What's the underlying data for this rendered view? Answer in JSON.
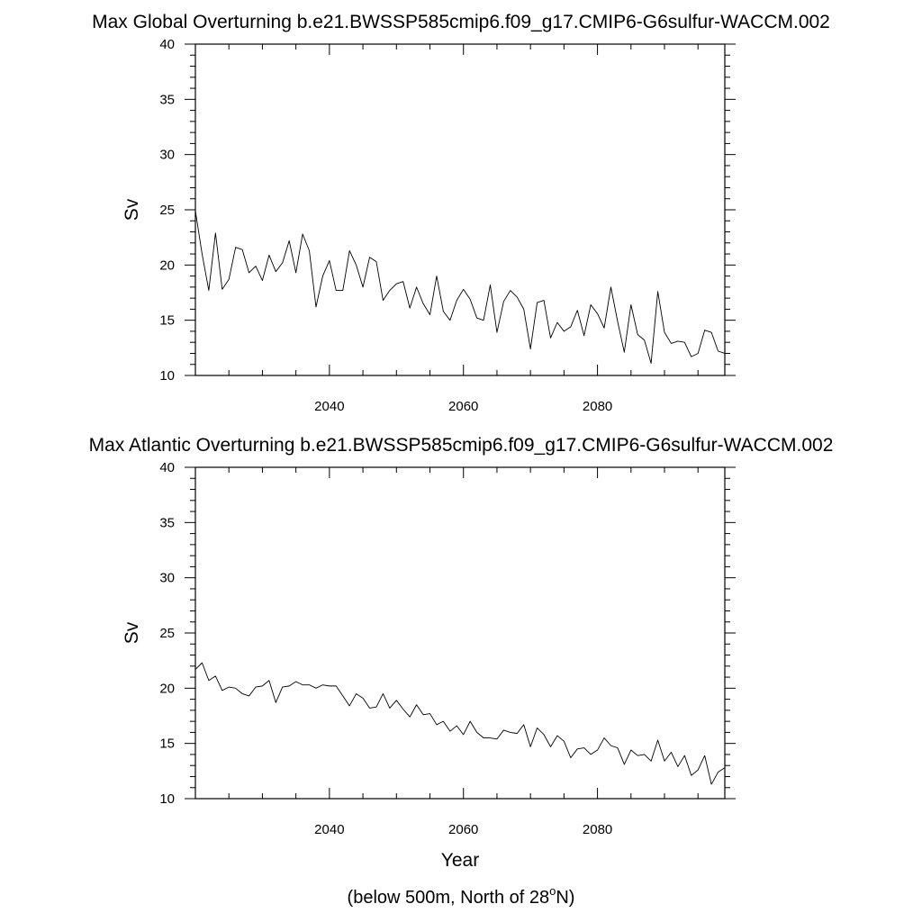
{
  "chart_data": [
    {
      "type": "line",
      "title": "Max Global Overturning b.e21.BWSSP585cmip6.f09_g17.CMIP6-G6sulfur-WACCM.002",
      "xlabel": "",
      "ylabel": "Sv",
      "xlim": [
        2020,
        2099
      ],
      "ylim": [
        10,
        40
      ],
      "x_ticks": [
        "2040",
        "2060",
        "2080"
      ],
      "y_ticks": [
        "10",
        "15",
        "20",
        "25",
        "30",
        "35",
        "40"
      ],
      "grid": false,
      "series": [
        {
          "x": [
            2020,
            2021,
            2022,
            2023,
            2024,
            2025,
            2026,
            2027,
            2028,
            2029,
            2030,
            2031,
            2032,
            2033,
            2034,
            2035,
            2036,
            2037,
            2038,
            2039,
            2040,
            2041,
            2042,
            2043,
            2044,
            2045,
            2046,
            2047,
            2048,
            2049,
            2050,
            2051,
            2052,
            2053,
            2054,
            2055,
            2056,
            2057,
            2058,
            2059,
            2060,
            2061,
            2062,
            2063,
            2064,
            2065,
            2066,
            2067,
            2068,
            2069,
            2070,
            2071,
            2072,
            2073,
            2074,
            2075,
            2076,
            2077,
            2078,
            2079,
            2080,
            2081,
            2082,
            2083,
            2084,
            2085,
            2086,
            2087,
            2088,
            2089,
            2090,
            2091,
            2092,
            2093,
            2094,
            2095,
            2096,
            2097,
            2098,
            2099
          ],
          "values": [
            24.9,
            21.0,
            17.7,
            22.9,
            17.8,
            18.7,
            21.6,
            21.4,
            19.3,
            19.9,
            18.6,
            20.9,
            19.4,
            20.2,
            22.2,
            19.3,
            22.8,
            21.3,
            16.2,
            19.0,
            20.4,
            17.7,
            17.7,
            21.3,
            20.0,
            18.0,
            20.7,
            20.3,
            16.8,
            17.7,
            18.3,
            18.5,
            16.1,
            18.0,
            16.5,
            15.5,
            19.0,
            15.8,
            15.0,
            16.8,
            17.8,
            16.9,
            15.2,
            15.0,
            18.2,
            13.9,
            16.7,
            17.7,
            17.1,
            16.0,
            12.4,
            16.6,
            16.8,
            13.4,
            14.8,
            14.0,
            14.4,
            15.9,
            13.6,
            16.4,
            15.6,
            14.3,
            18.0,
            14.9,
            12.1,
            16.4,
            13.7,
            13.2,
            11.1,
            17.6,
            13.9,
            12.9,
            13.1,
            13.0,
            11.7,
            12.0,
            14.1,
            13.9,
            12.2,
            12.0
          ]
        }
      ]
    },
    {
      "type": "line",
      "title": "Max Atlantic Overturning b.e21.BWSSP585cmip6.f09_g17.CMIP6-G6sulfur-WACCM.002",
      "xlabel": "Year",
      "ylabel": "Sv",
      "xlim": [
        2020,
        2099
      ],
      "ylim": [
        10,
        40
      ],
      "x_ticks": [
        "2040",
        "2060",
        "2080"
      ],
      "y_ticks": [
        "10",
        "15",
        "20",
        "25",
        "30",
        "35",
        "40"
      ],
      "grid": false,
      "series": [
        {
          "x": [
            2020,
            2021,
            2022,
            2023,
            2024,
            2025,
            2026,
            2027,
            2028,
            2029,
            2030,
            2031,
            2032,
            2033,
            2034,
            2035,
            2036,
            2037,
            2038,
            2039,
            2040,
            2041,
            2042,
            2043,
            2044,
            2045,
            2046,
            2047,
            2048,
            2049,
            2050,
            2051,
            2052,
            2053,
            2054,
            2055,
            2056,
            2057,
            2058,
            2059,
            2060,
            2061,
            2062,
            2063,
            2064,
            2065,
            2066,
            2067,
            2068,
            2069,
            2070,
            2071,
            2072,
            2073,
            2074,
            2075,
            2076,
            2077,
            2078,
            2079,
            2080,
            2081,
            2082,
            2083,
            2084,
            2085,
            2086,
            2087,
            2088,
            2089,
            2090,
            2091,
            2092,
            2093,
            2094,
            2095,
            2096,
            2097,
            2098,
            2099
          ],
          "values": [
            21.7,
            22.3,
            20.7,
            21.1,
            19.8,
            20.1,
            20.0,
            19.5,
            19.3,
            20.1,
            20.2,
            20.7,
            18.7,
            20.1,
            20.2,
            20.6,
            20.3,
            20.3,
            20.0,
            20.3,
            20.2,
            20.2,
            19.3,
            18.4,
            19.5,
            19.1,
            18.2,
            18.3,
            19.5,
            18.2,
            18.9,
            18.1,
            17.4,
            18.5,
            17.6,
            17.7,
            16.7,
            17.0,
            16.1,
            16.6,
            15.8,
            17.0,
            16.0,
            15.5,
            15.5,
            15.4,
            16.2,
            16.0,
            15.9,
            16.7,
            14.7,
            16.4,
            15.8,
            14.7,
            15.7,
            15.2,
            13.7,
            14.5,
            14.6,
            14.0,
            14.4,
            15.5,
            14.8,
            14.6,
            13.1,
            14.4,
            13.9,
            14.0,
            13.4,
            15.3,
            13.4,
            14.2,
            12.9,
            13.9,
            12.1,
            12.6,
            13.9,
            11.3,
            12.4,
            12.8
          ]
        }
      ],
      "note": {
        "prefix": "(below 500m, North of 28",
        "superscript": "o",
        "suffix": "N)"
      }
    }
  ]
}
